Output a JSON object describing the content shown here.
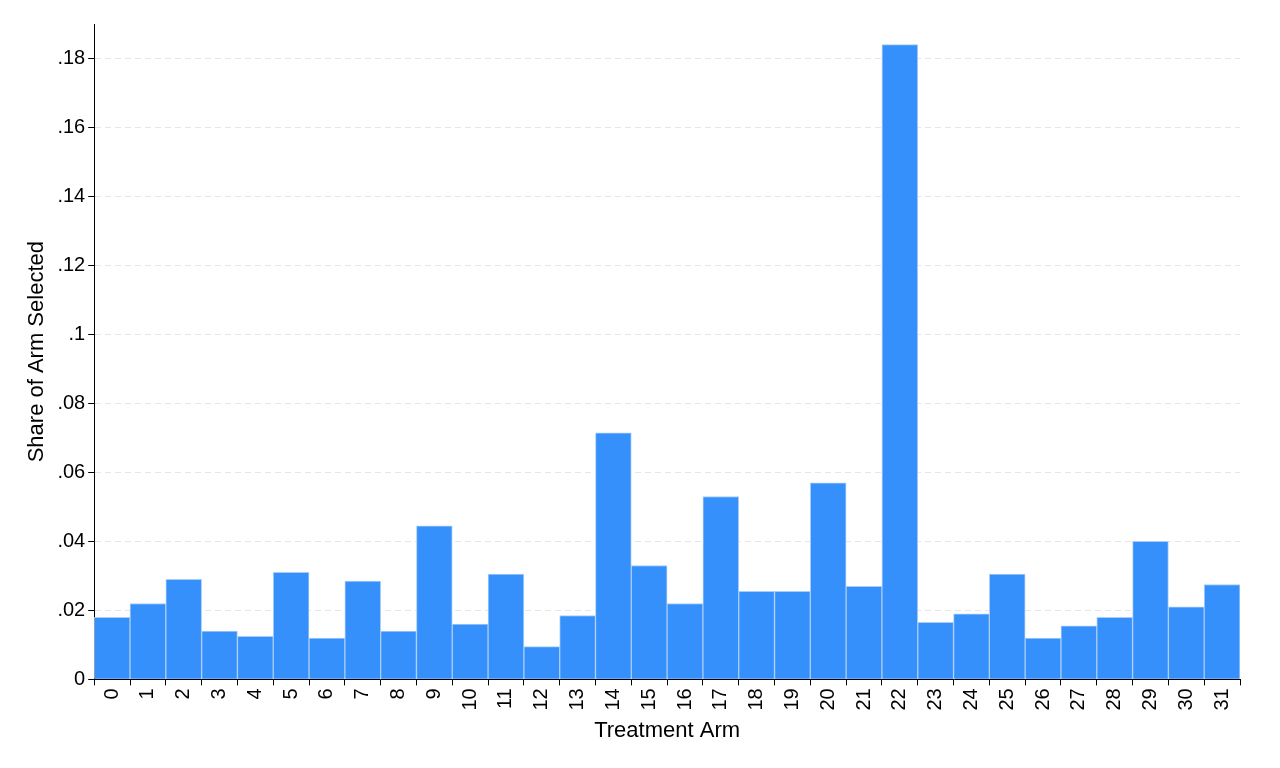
{
  "chart_data": {
    "type": "bar",
    "x_label": "Treatment Arm",
    "y_label": "Share of Arm Selected",
    "categories": [
      "0",
      "1",
      "2",
      "3",
      "4",
      "5",
      "6",
      "7",
      "8",
      "9",
      "10",
      "11",
      "12",
      "13",
      "14",
      "15",
      "16",
      "17",
      "18",
      "19",
      "20",
      "21",
      "22",
      "23",
      "24",
      "25",
      "26",
      "27",
      "28",
      "29",
      "30",
      "31"
    ],
    "values": [
      0.018,
      0.022,
      0.029,
      0.014,
      0.0125,
      0.031,
      0.012,
      0.0285,
      0.014,
      0.0445,
      0.016,
      0.0305,
      0.0095,
      0.0185,
      0.0715,
      0.033,
      0.022,
      0.053,
      0.0255,
      0.0255,
      0.057,
      0.027,
      0.184,
      0.0165,
      0.019,
      0.0305,
      0.012,
      0.0155,
      0.018,
      0.04,
      0.021,
      0.0275
    ],
    "color": "#3590fb",
    "ylim": [
      0,
      0.19
    ],
    "yticks": [
      0,
      {
        "value": 0.02,
        "label": ".02"
      },
      {
        "value": 0.04,
        "label": ".04"
      },
      {
        "value": 0.06,
        "label": ".06"
      },
      {
        "value": 0.08,
        "label": ".08"
      },
      {
        "value": 0.1,
        "label": ".1"
      },
      {
        "value": 0.12,
        "label": ".12"
      },
      {
        "value": 0.14,
        "label": ".14"
      },
      {
        "value": 0.16,
        "label": ".16"
      },
      {
        "value": 0.18,
        "label": ".18"
      }
    ],
    "grid": true
  }
}
